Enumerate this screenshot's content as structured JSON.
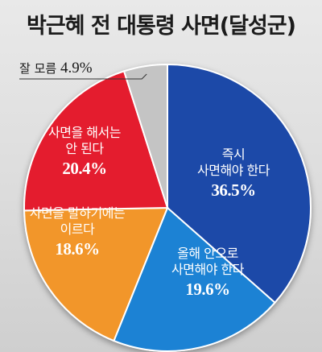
{
  "chart_data": {
    "type": "pie",
    "title": "박근혜 전 대통령 사면(달성군)",
    "slices": [
      {
        "label_lines": [
          "즉시",
          "사면해야 한다"
        ],
        "value": 36.5,
        "value_text": "36.5%",
        "color": "#1f4aa8"
      },
      {
        "label_lines": [
          "올해 안으로",
          "사면해야 한다"
        ],
        "value": 19.6,
        "value_text": "19.6%",
        "color": "#1a82d4"
      },
      {
        "label_lines": [
          "사면을 말하기에는",
          "이르다"
        ],
        "value": 18.6,
        "value_text": "18.6%",
        "color": "#f2962a"
      },
      {
        "label_lines": [
          "사면을 해서는",
          "안 된다"
        ],
        "value": 20.4,
        "value_text": "20.4%",
        "color": "#e41e2d"
      },
      {
        "label_lines": [
          "잘 모름"
        ],
        "value": 4.9,
        "value_text": "4.9%",
        "color": "#c4c4c4"
      }
    ]
  }
}
